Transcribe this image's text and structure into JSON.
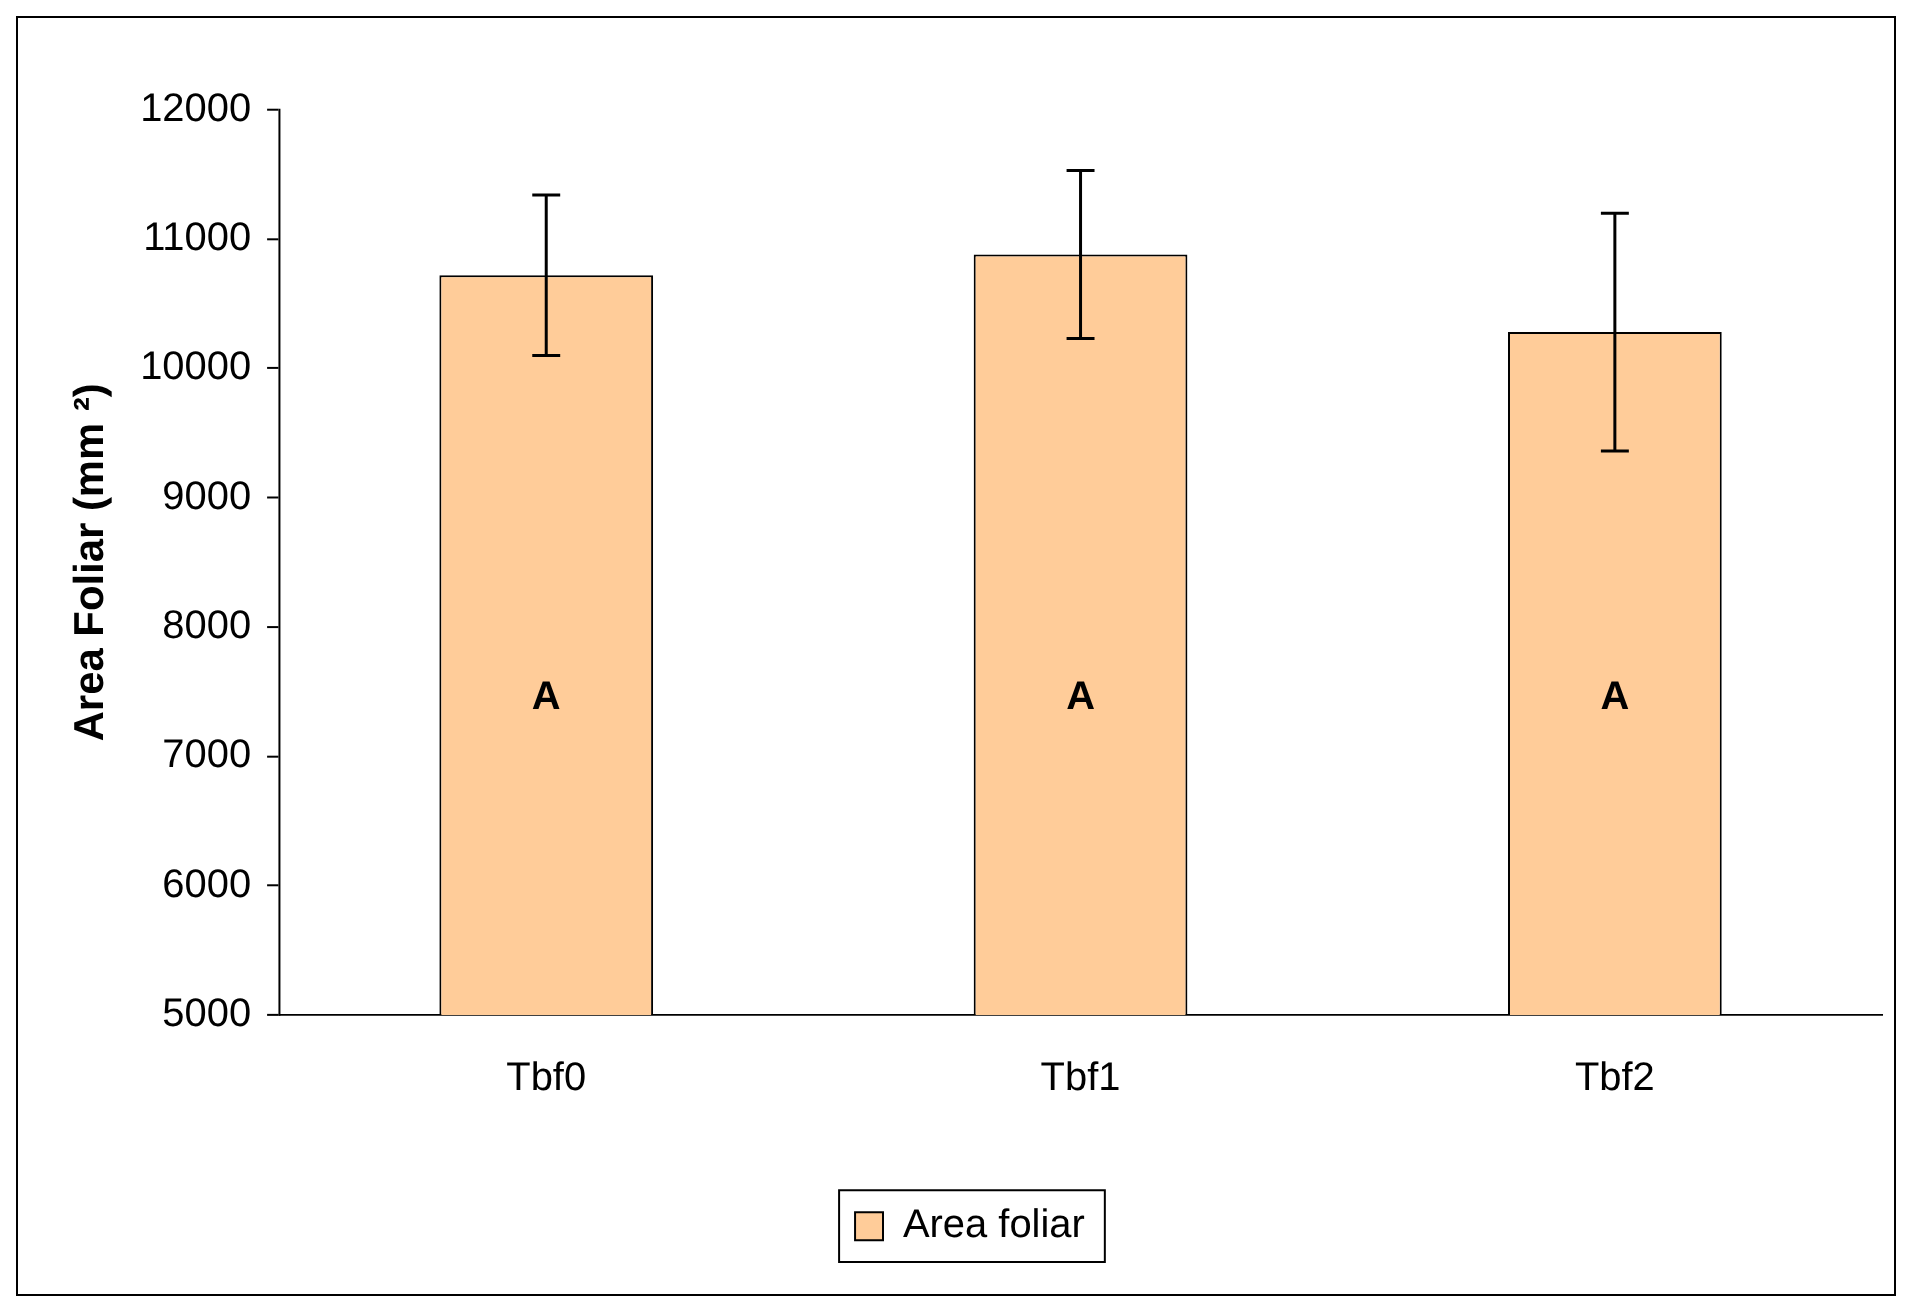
{
  "chart_data": {
    "type": "bar",
    "categories": [
      "Tbf0",
      "Tbf1",
      "Tbf2"
    ],
    "series": [
      {
        "name": "Area foliar",
        "color": "#ffcc99",
        "values": [
          10720,
          10880,
          10280
        ],
        "errors": [
          620,
          650,
          920
        ]
      }
    ],
    "ylabel": "Area Foliar (mm ²)",
    "ylim": [
      5000,
      12000
    ],
    "yticks": [
      5000,
      6000,
      7000,
      8000,
      9000,
      10000,
      11000,
      12000
    ],
    "grid": false,
    "legend": "bottom",
    "annotations": [
      "A",
      "A",
      "A"
    ]
  }
}
